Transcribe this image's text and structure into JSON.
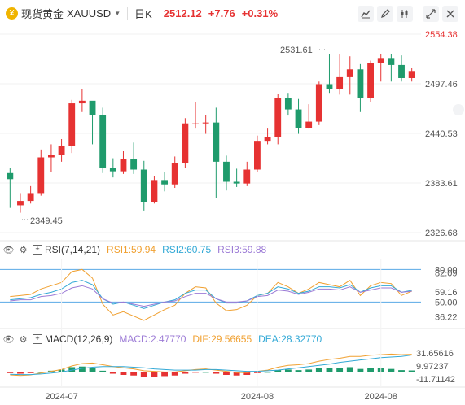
{
  "header": {
    "symbol_name": "现货黄金",
    "symbol_code": "XAUUSD",
    "period": "日K",
    "price": "2512.12",
    "change": "+7.76",
    "percent": "+0.31%"
  },
  "colors": {
    "up": "#e63232",
    "down": "#1f9b6c",
    "rsi1": "#f0a030",
    "rsi2": "#33a9d6",
    "rsi3": "#9c7bd6",
    "line": "#5aa9e6"
  },
  "rsi": {
    "label": "RSI(7,14,21)",
    "rsi1": "RSI1:59.94",
    "rsi2": "RSI2:60.75",
    "rsi3": "RSI3:59.88",
    "ticks": [
      "82.09",
      "59.16",
      "36.22"
    ],
    "levels": [
      "80.00",
      "50.00"
    ]
  },
  "macd": {
    "label": "MACD(12,26,9)",
    "macd": "MACD:2.47770",
    "dif": "DIF:29.56655",
    "dea": "DEA:28.32770",
    "ticks": [
      "31.65616",
      "9.97237",
      "-11.71142"
    ]
  },
  "chart_data": {
    "type": "candlestick",
    "ylim": [
      2326.68,
      2554.38
    ],
    "y_ticks": [
      "2554.38",
      "2497.46",
      "2440.53",
      "2383.61",
      "2326.68"
    ],
    "x_ticks": [
      "2024-07",
      "2024-08",
      "2024-08"
    ],
    "annotations": {
      "high": "2531.61",
      "low": "2349.45"
    },
    "candles": [
      [
        2395,
        2388,
        2401,
        2355
      ],
      [
        2358,
        2363,
        2372,
        2349.45
      ],
      [
        2363,
        2372,
        2380,
        2360
      ],
      [
        2372,
        2413,
        2422,
        2369
      ],
      [
        2413,
        2416,
        2428,
        2396
      ],
      [
        2416,
        2426,
        2434,
        2408
      ],
      [
        2426,
        2475,
        2479,
        2418
      ],
      [
        2475,
        2478,
        2491,
        2465
      ],
      [
        2478,
        2462,
        2472,
        2428
      ],
      [
        2462,
        2401,
        2470,
        2395
      ],
      [
        2401,
        2397,
        2412,
        2390
      ],
      [
        2397,
        2411,
        2420,
        2394
      ],
      [
        2411,
        2399,
        2430,
        2394
      ],
      [
        2399,
        2362,
        2409,
        2352
      ],
      [
        2362,
        2387,
        2392,
        2360
      ],
      [
        2387,
        2382,
        2396,
        2374
      ],
      [
        2382,
        2406,
        2414,
        2378
      ],
      [
        2406,
        2452,
        2458,
        2401
      ],
      [
        2452,
        2452,
        2476,
        2446
      ],
      [
        2452,
        2453,
        2462,
        2440
      ],
      [
        2453,
        2408,
        2470,
        2366
      ],
      [
        2408,
        2385,
        2415,
        2375
      ],
      [
        2385,
        2383,
        2400,
        2379
      ],
      [
        2383,
        2399,
        2408,
        2380
      ],
      [
        2399,
        2432,
        2438,
        2396
      ],
      [
        2432,
        2436,
        2446,
        2428
      ],
      [
        2436,
        2481,
        2486,
        2428
      ],
      [
        2481,
        2468,
        2487,
        2461
      ],
      [
        2468,
        2447,
        2480,
        2440
      ],
      [
        2447,
        2454,
        2474,
        2446
      ],
      [
        2454,
        2497,
        2500,
        2450
      ],
      [
        2497,
        2491,
        2531.61,
        2487
      ],
      [
        2491,
        2505,
        2531,
        2485
      ],
      [
        2505,
        2514,
        2529,
        2485
      ],
      [
        2514,
        2481,
        2520,
        2465
      ],
      [
        2481,
        2521,
        2524,
        2476
      ],
      [
        2521,
        2527,
        2532,
        2500
      ],
      [
        2527,
        2519,
        2532,
        2500
      ],
      [
        2519,
        2504,
        2530,
        2500
      ],
      [
        2504,
        2512.12,
        2516,
        2500
      ]
    ],
    "rsi_ylim": [
      30,
      90
    ],
    "rsi1": [
      55,
      56,
      57,
      62,
      65,
      68,
      78,
      80,
      72,
      48,
      38,
      41,
      37,
      33,
      38,
      43,
      47,
      58,
      64,
      63,
      49,
      42,
      43,
      47,
      56,
      58,
      68,
      64,
      58,
      62,
      68,
      66,
      64,
      70,
      56,
      65,
      68,
      67,
      56,
      59.94
    ],
    "rsi2": [
      52,
      53,
      54,
      57,
      59,
      62,
      68,
      70,
      66,
      53,
      48,
      50,
      47,
      44,
      47,
      50,
      52,
      58,
      61,
      61,
      53,
      49,
      49,
      51,
      56,
      58,
      64,
      62,
      58,
      60,
      64,
      64,
      63,
      66,
      59,
      63,
      65,
      65,
      59,
      60.75
    ],
    "rsi3": [
      51,
      52,
      52,
      55,
      56,
      58,
      63,
      65,
      62,
      53,
      49,
      50,
      48,
      46,
      48,
      50,
      51,
      55,
      58,
      58,
      53,
      50,
      50,
      51,
      55,
      56,
      61,
      60,
      57,
      59,
      62,
      62,
      61,
      64,
      59,
      61,
      63,
      63,
      59,
      59.88
    ],
    "macd_ylim": [
      -20,
      40
    ],
    "macd_hist": [
      -2,
      -3,
      -2,
      0,
      2,
      4,
      8,
      9,
      7,
      2,
      -3,
      -5,
      -6,
      -8,
      -8,
      -7,
      -6,
      -3,
      -1,
      0,
      -3,
      -5,
      -6,
      -5,
      -2,
      0,
      3,
      4,
      3,
      4,
      6,
      7,
      7,
      8,
      5,
      6,
      6,
      5,
      3,
      2.4777
    ],
    "dif": [
      -5,
      -6,
      -5,
      -2,
      1,
      4,
      10,
      14,
      15,
      12,
      9,
      7,
      5,
      2,
      1,
      0,
      0,
      2,
      4,
      5,
      3,
      1,
      -1,
      -1,
      1,
      3,
      8,
      11,
      12,
      14,
      18,
      21,
      23,
      26,
      26,
      28,
      29,
      30,
      29,
      29.57
    ],
    "dea": [
      -4,
      -4.5,
      -4.5,
      -3.5,
      -2,
      0,
      3,
      6,
      8,
      9,
      9,
      9,
      8,
      7,
      5,
      4,
      3,
      3,
      3,
      4,
      4,
      3,
      2,
      1,
      1,
      2,
      3,
      5,
      7,
      9,
      11,
      13,
      16,
      18,
      20,
      22,
      24,
      25,
      26,
      28.33
    ]
  }
}
